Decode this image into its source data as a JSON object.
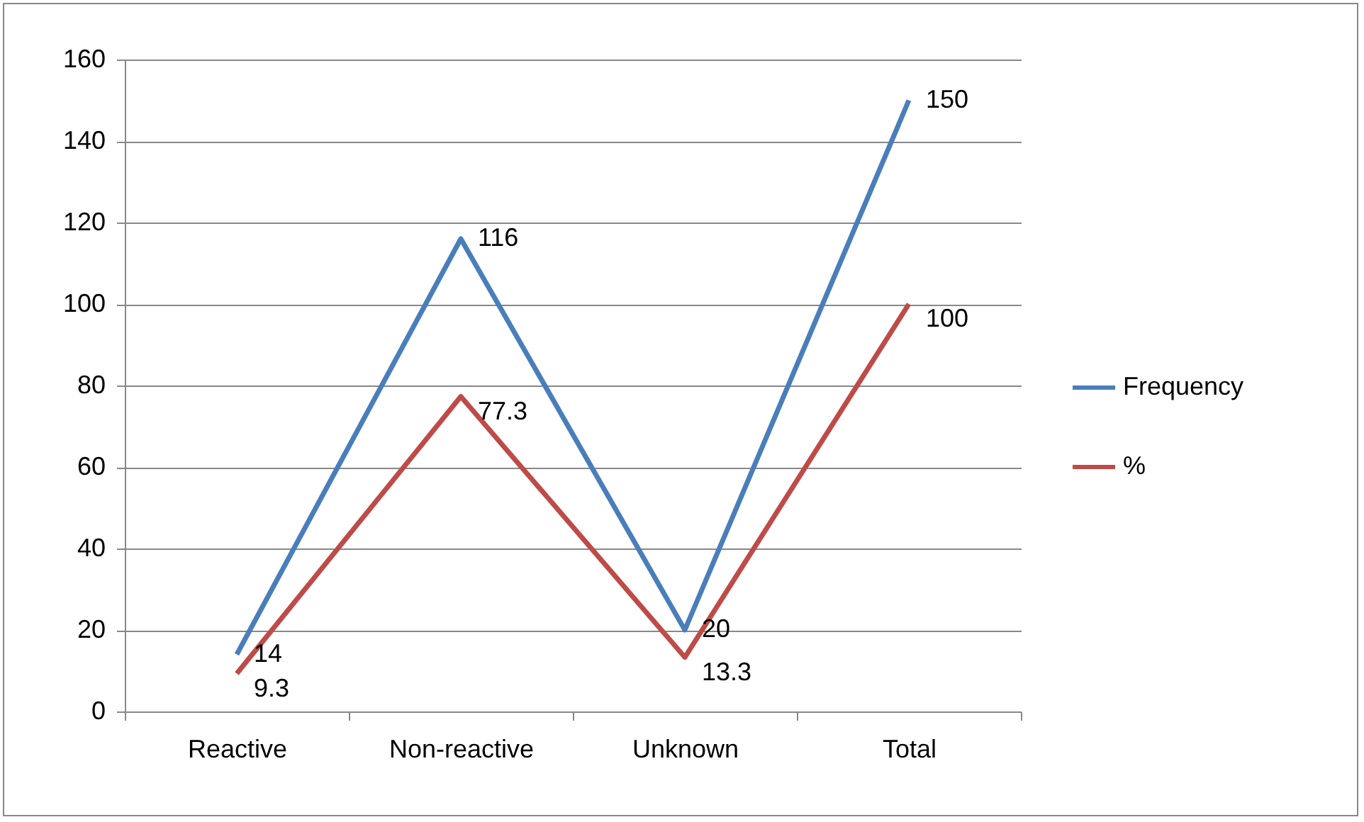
{
  "chart_data": {
    "type": "line",
    "categories": [
      "Reactive",
      "Non-reactive",
      "Unknown",
      "Total"
    ],
    "series": [
      {
        "name": "Frequency",
        "color": "#4a7ebb",
        "values": [
          14,
          116,
          20,
          150
        ]
      },
      {
        "name": "%",
        "color": "#be4b48",
        "values": [
          9.3,
          77.3,
          13.3,
          100
        ]
      }
    ],
    "ylim": [
      0,
      160
    ],
    "yticks": [
      0,
      20,
      40,
      60,
      80,
      100,
      120,
      140,
      160
    ],
    "grid": "y",
    "legend": "right",
    "data_labels": true,
    "marker": "none",
    "line_style": "solid"
  }
}
